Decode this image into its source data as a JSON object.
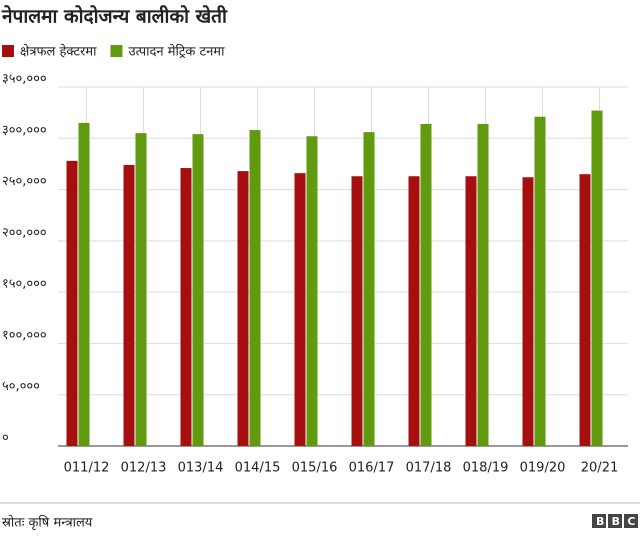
{
  "chart_data": {
    "type": "bar",
    "title": "नेपालमा कोदोजन्य बालीको खेती",
    "categories": [
      "011/12",
      "012/13",
      "013/14",
      "014/15",
      "015/16",
      "016/17",
      "017/18",
      "018/19",
      "019/20",
      "20/21"
    ],
    "series": [
      {
        "name": "क्षेत्रफल हेक्टरमा",
        "color": "#a50f0f",
        "values": [
          278000,
          274000,
          271000,
          268000,
          266000,
          263000,
          263000,
          263000,
          262000,
          265000
        ]
      },
      {
        "name": "उत्पादन मेट्रिक टनमा",
        "color": "#5f9a0f",
        "values": [
          315000,
          305000,
          304000,
          308000,
          302000,
          306000,
          314000,
          314000,
          321000,
          327000
        ]
      }
    ],
    "ylim": [
      0,
      350000
    ],
    "yticks": [
      {
        "value": 0,
        "label": "०"
      },
      {
        "value": 50000,
        "label": "५०,०००"
      },
      {
        "value": 100000,
        "label": "१००,०००"
      },
      {
        "value": 150000,
        "label": "१५०,०००"
      },
      {
        "value": 200000,
        "label": "२००,०००"
      },
      {
        "value": 250000,
        "label": "२५०,०००"
      },
      {
        "value": 300000,
        "label": "३००,०००"
      },
      {
        "value": 350000,
        "label": "३५०,०००"
      }
    ],
    "grid": true,
    "source": "स्रोतः कृषि मन्त्रालय",
    "branding": "BBC"
  }
}
